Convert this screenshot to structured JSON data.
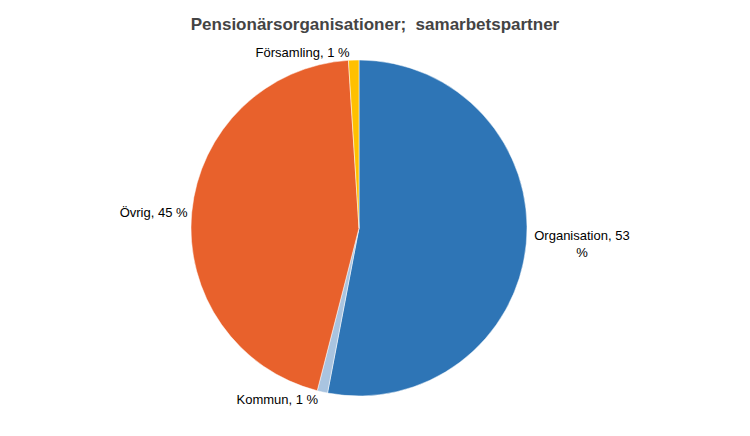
{
  "chart_data": {
    "type": "pie",
    "title": "Pensionärsorganisationer;  samarbetspartner",
    "values": [
      53,
      1,
      45,
      1
    ],
    "value_labels": [
      "Organisation, 53\n%",
      "Kommun, 1 %",
      "Övrig, 45 %",
      "Församling, 1 %"
    ],
    "colors": [
      "#2E75B6",
      "#A9C4E0",
      "#E8612C",
      "#FFC000"
    ],
    "data_labels": true
  }
}
